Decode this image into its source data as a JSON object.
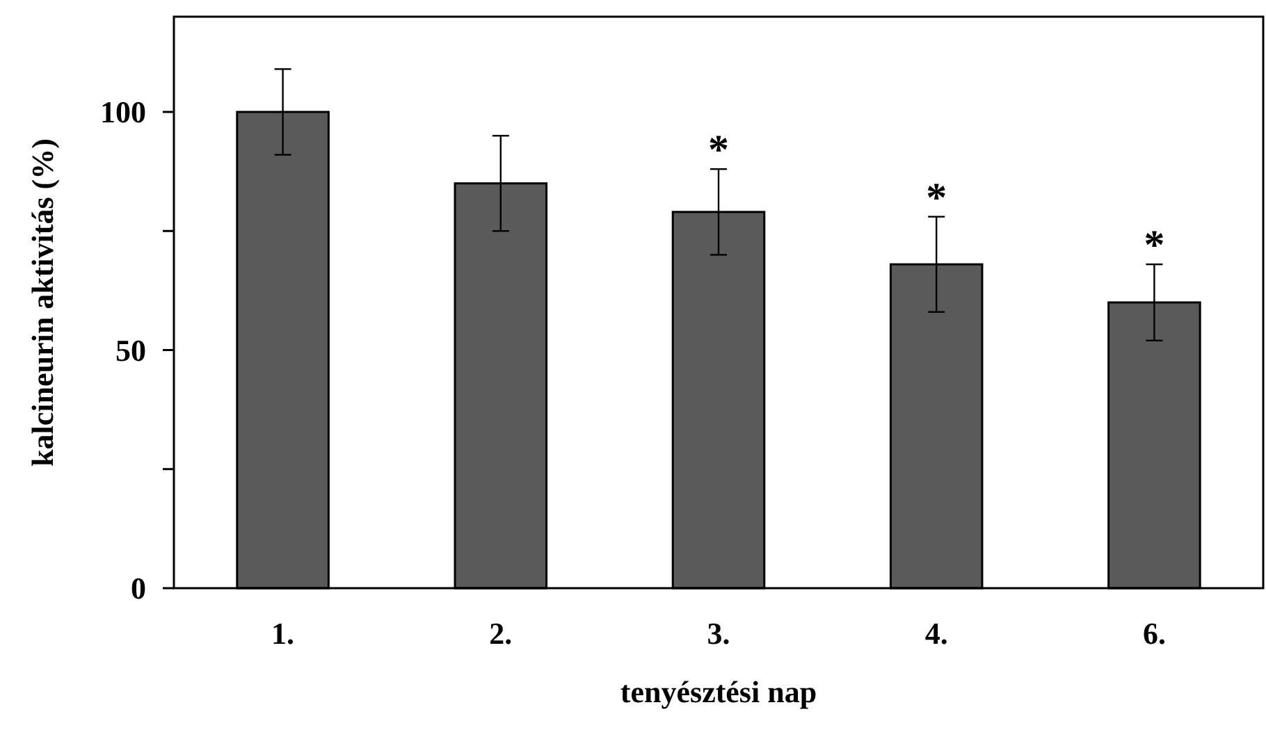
{
  "chart_data": {
    "type": "bar",
    "xlabel": "tenyésztési nap",
    "ylabel": "kalcineurin aktivitás (%)",
    "categories": [
      "1.",
      "2.",
      "3.",
      "4.",
      "6."
    ],
    "values": [
      100,
      85,
      79,
      68,
      60
    ],
    "errors": [
      9,
      10,
      9,
      10,
      8
    ],
    "color": "#5a5a5a",
    "ylim": [
      0,
      120
    ],
    "yticks": [
      0,
      {
        "value": 25,
        "label": null
      },
      50,
      {
        "value": 75,
        "label": null
      },
      100
    ],
    "grid": false,
    "annotations": [
      {
        "text": "*",
        "x": "3.",
        "y": 88
      },
      {
        "text": "*",
        "x": "4.",
        "y": 78
      },
      {
        "text": "*",
        "x": "6.",
        "y": 68
      }
    ]
  }
}
